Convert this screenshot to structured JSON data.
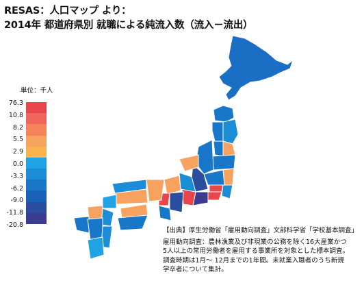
{
  "title": {
    "line1": "RESAS：人口マップ より：",
    "line2": "2014年 都道府県別 就職による純流入数（流入－流出）"
  },
  "legend": {
    "unit": "単位：千人",
    "ticks": [
      "76.3",
      "10.8",
      "8.2",
      "5.5",
      "2.9",
      "0.0",
      "-3.3",
      "-6.2",
      "-9.0",
      "-11.8",
      "-20.8"
    ],
    "colors": [
      "#e8464b",
      "#f0665c",
      "#f5845a",
      "#f7a25e",
      "#f8b450",
      "#1fa3e4",
      "#1b8cd6",
      "#1877c9",
      "#1a62b8",
      "#2a4d9f",
      "#3b3b8f"
    ]
  },
  "source": {
    "heading": "【出典】厚生労働省「雇用動向調査」文部科学省「学校基本調査」",
    "lines": [
      "雇用動向調査：農林漁業及び非現業の公務を除く16大産業かつ",
      "5人以上の常用労働者を雇用する事業所を対象とした標本調査。",
      "調査時期は1月～ 12月までの1年間。未就業入職者のうち新規",
      "学卒者について集計。"
    ]
  },
  "map_colors": {
    "sea_line": "#ffffff",
    "outline": "#2a2a2a",
    "hokkaido": "#1a6fc4",
    "tohoku_blue": "#1877c9",
    "dark_blue": "#2a4d9f",
    "orange": "#f7a25e",
    "red": "#e8464b",
    "mid_blue": "#1b8cd6",
    "navy": "#3b3b8f",
    "light_blue": "#1fa3e4"
  }
}
